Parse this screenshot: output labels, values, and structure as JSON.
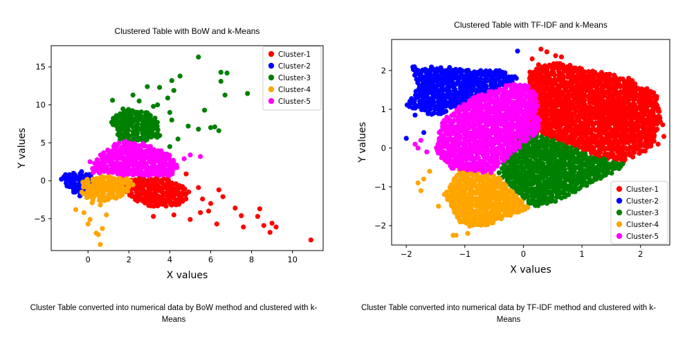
{
  "chart_data": [
    {
      "type": "scatter",
      "title": "Clustered Table with BoW and k-Means",
      "xlabel": "X values",
      "ylabel": "Y values",
      "xlim": [
        -1.8,
        11.5
      ],
      "ylim": [
        -9.2,
        17.8
      ],
      "xticks": [
        0,
        2,
        4,
        6,
        8,
        10
      ],
      "yticks": [
        -5,
        0,
        5,
        10,
        15
      ],
      "xticklabels": [
        "0",
        "2",
        "4",
        "6",
        "8",
        "10"
      ],
      "yticklabels": [
        "−5",
        "0",
        "5",
        "10",
        "15"
      ],
      "grid": false,
      "legend_position": "top-right",
      "caption": "Cluster Table converted into numerical data by BoW method and clustered with k-Means",
      "series": [
        {
          "name": "Cluster-1",
          "color": "#ff0000",
          "region": [
            [
              1.7,
              -1.2
            ],
            [
              1.8,
              0.2
            ],
            [
              2.6,
              0.5
            ],
            [
              3.6,
              0.4
            ],
            [
              4.5,
              -0.3
            ],
            [
              5.0,
              -1.6
            ],
            [
              4.6,
              -3.3
            ],
            [
              3.4,
              -3.6
            ],
            [
              2.4,
              -2.9
            ]
          ],
          "points": [
            [
              6.4,
              -1.2
            ],
            [
              5.6,
              -2.4
            ],
            [
              7.2,
              -3.6
            ],
            [
              5.9,
              -4.0
            ],
            [
              6.3,
              -5.7
            ],
            [
              7.5,
              -4.6
            ],
            [
              7.6,
              -6.1
            ],
            [
              8.3,
              -4.7
            ],
            [
              8.4,
              -3.7
            ],
            [
              8.6,
              -5.9
            ],
            [
              9.0,
              -5.6
            ],
            [
              8.9,
              -6.8
            ],
            [
              9.2,
              -6.1
            ],
            [
              10.9,
              -7.8
            ],
            [
              6.0,
              -3.0
            ],
            [
              5.5,
              -4.2
            ],
            [
              5.4,
              -0.9
            ],
            [
              6.6,
              -2.1
            ],
            [
              4.2,
              -4.5
            ],
            [
              5.0,
              -5.1
            ],
            [
              3.2,
              -4.7
            ],
            [
              4.8,
              0.9
            ]
          ]
        },
        {
          "name": "Cluster-2",
          "color": "#0000ff",
          "region": [
            [
              -1.2,
              0.6
            ],
            [
              -0.8,
              1.3
            ],
            [
              -0.2,
              1.2
            ],
            [
              0.3,
              0.6
            ],
            [
              0.1,
              -1.4
            ],
            [
              -0.3,
              -2.1
            ],
            [
              -0.8,
              -1.4
            ],
            [
              -1.2,
              -0.3
            ]
          ],
          "points": [
            [
              -1.3,
              0.2
            ],
            [
              -1.1,
              0.8
            ],
            [
              -0.7,
              -1.5
            ],
            [
              -0.4,
              -2.0
            ]
          ]
        },
        {
          "name": "Cluster-3",
          "color": "#008000",
          "region": [
            [
              1.1,
              8.0
            ],
            [
              1.7,
              9.5
            ],
            [
              3.0,
              9.0
            ],
            [
              3.6,
              7.5
            ],
            [
              3.5,
              5.8
            ],
            [
              2.6,
              5.0
            ],
            [
              1.5,
              5.0
            ]
          ],
          "points": [
            [
              5.4,
              16.3
            ],
            [
              6.5,
              14.3
            ],
            [
              6.8,
              14.2
            ],
            [
              6.5,
              13.1
            ],
            [
              4.5,
              13.8
            ],
            [
              4.1,
              13.2
            ],
            [
              4.2,
              11.9
            ],
            [
              3.5,
              12.3
            ],
            [
              2.9,
              12.4
            ],
            [
              2.5,
              10.5
            ],
            [
              3.2,
              9.8
            ],
            [
              3.9,
              10.9
            ],
            [
              6.7,
              11.3
            ],
            [
              7.8,
              11.5
            ],
            [
              4.0,
              9.0
            ],
            [
              5.7,
              9.3
            ],
            [
              6.0,
              7.0
            ],
            [
              6.4,
              6.6
            ],
            [
              6.2,
              7.1
            ],
            [
              4.9,
              7.2
            ],
            [
              4.4,
              5.5
            ],
            [
              4.0,
              4.5
            ],
            [
              5.4,
              6.8
            ],
            [
              1.2,
              10.6
            ],
            [
              2.2,
              11.3
            ],
            [
              2.0,
              7.6
            ],
            [
              4.1,
              8.0
            ],
            [
              3.4,
              10.0
            ]
          ]
        },
        {
          "name": "Cluster-4",
          "color": "#ffa500",
          "region": [
            [
              -0.3,
              0.0
            ],
            [
              0.4,
              0.7
            ],
            [
              1.8,
              0.6
            ],
            [
              2.3,
              -0.5
            ],
            [
              1.6,
              -2.2
            ],
            [
              0.5,
              -2.8
            ],
            [
              -0.2,
              -2.4
            ],
            [
              -0.4,
              -1.2
            ]
          ],
          "points": [
            [
              -0.6,
              -3.8
            ],
            [
              -0.2,
              -4.2
            ],
            [
              0.1,
              -5.1
            ],
            [
              0.0,
              -5.7
            ],
            [
              0.4,
              -6.9
            ],
            [
              0.6,
              -8.4
            ],
            [
              0.5,
              -7.1
            ],
            [
              0.7,
              -6.3
            ],
            [
              0.9,
              -4.5
            ],
            [
              0.2,
              -2.9
            ],
            [
              0.6,
              -3.2
            ]
          ]
        },
        {
          "name": "Cluster-5",
          "color": "#ff00ff",
          "region": [
            [
              0.2,
              1.8
            ],
            [
              0.6,
              3.6
            ],
            [
              1.5,
              5.3
            ],
            [
              2.7,
              4.9
            ],
            [
              3.9,
              3.8
            ],
            [
              4.4,
              2.0
            ],
            [
              4.2,
              0.6
            ],
            [
              3.0,
              0.4
            ],
            [
              1.2,
              0.8
            ],
            [
              0.2,
              1.0
            ]
          ],
          "points": [
            [
              5.5,
              3.2
            ],
            [
              5.0,
              3.4
            ],
            [
              4.7,
              2.9
            ],
            [
              0.1,
              2.5
            ]
          ]
        }
      ]
    },
    {
      "type": "scatter",
      "title": "Clustered Table with TF-IDF and k-Means",
      "xlabel": "X values",
      "ylabel": "Y values",
      "xlim": [
        -2.25,
        2.5
      ],
      "ylim": [
        -2.5,
        2.8
      ],
      "xticks": [
        -2,
        -1,
        0,
        1,
        2
      ],
      "yticks": [
        -2,
        -1,
        0,
        1,
        2
      ],
      "xticklabels": [
        "−2",
        "−1",
        "0",
        "1",
        "2"
      ],
      "yticklabels": [
        "−2",
        "−1",
        "0",
        "1",
        "2"
      ],
      "grid": false,
      "legend_position": "bottom-right",
      "caption": "Cluster Table converted into numerical data by TF-IDF method and clustered with k-Means",
      "series": [
        {
          "name": "Cluster-1",
          "color": "#ff0000",
          "region": [
            [
              0.1,
              1.6
            ],
            [
              0.05,
              1.9
            ],
            [
              0.25,
              2.15
            ],
            [
              0.6,
              2.2
            ],
            [
              1.2,
              2.0
            ],
            [
              1.8,
              1.8
            ],
            [
              2.3,
              1.4
            ],
            [
              2.35,
              0.7
            ],
            [
              2.2,
              0.0
            ],
            [
              1.7,
              -0.4
            ],
            [
              1.2,
              -0.2
            ],
            [
              0.0,
              0.5
            ]
          ],
          "points": [
            [
              0.3,
              2.55
            ],
            [
              0.4,
              2.48
            ],
            [
              0.55,
              2.38
            ],
            [
              0.65,
              2.35
            ],
            [
              0.15,
              2.3
            ],
            [
              2.38,
              0.6
            ],
            [
              2.3,
              0.1
            ],
            [
              2.4,
              0.3
            ]
          ]
        },
        {
          "name": "Cluster-2",
          "color": "#0000ff",
          "region": [
            [
              -2.0,
              1.1
            ],
            [
              -1.8,
              1.6
            ],
            [
              -1.9,
              2.1
            ],
            [
              -1.3,
              2.1
            ],
            [
              -0.9,
              2.0
            ],
            [
              -0.4,
              2.0
            ],
            [
              -0.05,
              1.8
            ],
            [
              -0.7,
              1.35
            ],
            [
              -1.5,
              0.8
            ]
          ],
          "points": [
            [
              -2.0,
              0.25
            ],
            [
              -1.85,
              0.85
            ],
            [
              -1.95,
              1.1
            ],
            [
              -0.1,
              2.5
            ],
            [
              -0.35,
              1.85
            ],
            [
              -1.7,
              0.4
            ]
          ]
        },
        {
          "name": "Cluster-3",
          "color": "#008000",
          "region": [
            [
              -0.45,
              -0.65
            ],
            [
              0.0,
              0.5
            ],
            [
              1.2,
              -0.2
            ],
            [
              1.7,
              -0.4
            ],
            [
              1.65,
              -0.55
            ],
            [
              0.6,
              -1.35
            ],
            [
              0.2,
              -1.55
            ],
            [
              -0.1,
              -1.2
            ]
          ],
          "points": []
        },
        {
          "name": "Cluster-4",
          "color": "#ffa500",
          "region": [
            [
              -1.1,
              -0.55
            ],
            [
              -0.5,
              -0.65
            ],
            [
              -0.1,
              -1.2
            ],
            [
              0.1,
              -1.55
            ],
            [
              -0.3,
              -1.8
            ],
            [
              -0.8,
              -2.1
            ],
            [
              -1.1,
              -1.9
            ],
            [
              -1.35,
              -1.2
            ]
          ],
          "points": [
            [
              -1.75,
              -1.1
            ],
            [
              -1.7,
              -0.8
            ],
            [
              -1.8,
              -0.9
            ],
            [
              -1.2,
              -2.25
            ],
            [
              -1.15,
              -2.25
            ],
            [
              -1.6,
              -0.6
            ],
            [
              -1.45,
              -1.5
            ],
            [
              -0.95,
              -2.2
            ]
          ]
        },
        {
          "name": "Cluster-5",
          "color": "#ff00ff",
          "region": [
            [
              -1.4,
              0.7
            ],
            [
              -0.9,
              1.3
            ],
            [
              -0.4,
              1.6
            ],
            [
              -0.05,
              1.7
            ],
            [
              0.2,
              1.5
            ],
            [
              0.3,
              0.5
            ],
            [
              -0.3,
              -0.3
            ],
            [
              -0.55,
              -0.65
            ],
            [
              -1.2,
              -0.55
            ],
            [
              -1.5,
              -0.1
            ]
          ],
          "points": [
            [
              -1.75,
              0.2
            ],
            [
              -1.8,
              0.0
            ],
            [
              -1.65,
              -0.1
            ],
            [
              -1.85,
              0.1
            ]
          ]
        }
      ]
    }
  ]
}
